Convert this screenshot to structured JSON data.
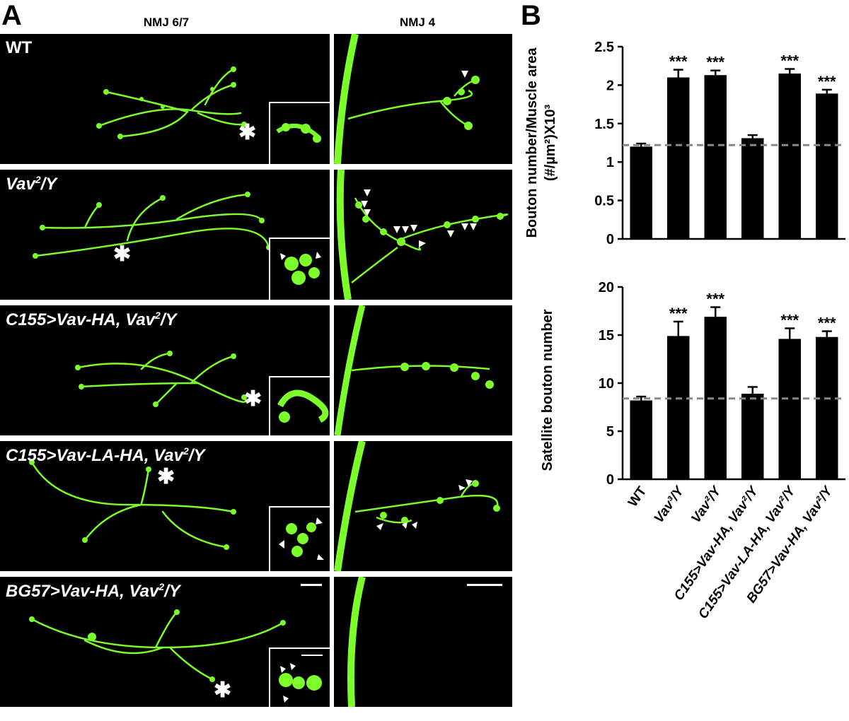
{
  "panel_a": {
    "letter": "A",
    "col_headers": [
      "NMJ 6/7",
      "NMJ 4"
    ],
    "rows": [
      {
        "label": "WT",
        "italic": false
      },
      {
        "label_pre": "Vav",
        "label_sup": "2",
        "label_post": "/Y",
        "italic": true
      },
      {
        "label_pre": "C155>Vav-HA, Vav",
        "label_sup": "2",
        "label_post": "/Y",
        "italic": true
      },
      {
        "label_pre": "C155>Vav-LA-HA, Vav",
        "label_sup": "2",
        "label_post": "/Y",
        "italic": true
      },
      {
        "label_pre": "BG57>Vav-HA, Vav",
        "label_sup": "2",
        "label_post": "/Y",
        "italic": true
      }
    ],
    "colors": {
      "signal": "#7CFC2A",
      "background": "#000000",
      "marker": "#ffffff"
    }
  },
  "panel_b": {
    "letter": "B"
  },
  "chart_data": [
    {
      "type": "bar",
      "ylabel_line1": "Bouton number/Muscle area",
      "ylabel_line2": "(#/µm²)X10³",
      "categories": [
        "WT",
        "Vav³/Y",
        "Vav²/Y",
        "C155>Vav-HA, Vav²/Y",
        "C155>Vav-LA-HA, Vav²/Y",
        "BG57>Vav-HA, Vav²/Y"
      ],
      "values": [
        1.2,
        2.1,
        2.13,
        1.31,
        2.15,
        1.89
      ],
      "errors": [
        0.04,
        0.1,
        0.06,
        0.04,
        0.06,
        0.05
      ],
      "significance": [
        "",
        "***",
        "***",
        "",
        "***",
        "***"
      ],
      "ylim": [
        0,
        2.5
      ],
      "yticks": [
        "0",
        "0.5",
        "1",
        "1.5",
        "2",
        "2.5"
      ],
      "reference_line": 1.22,
      "bar_color": "#000000",
      "reference_color": "#888888"
    },
    {
      "type": "bar",
      "ylabel_line1": "Satellite bouton number",
      "categories": [
        "WT",
        "Vav³/Y",
        "Vav²/Y",
        "C155>Vav-HA, Vav²/Y",
        "C155>Vav-LA-HA, Vav²/Y",
        "BG57>Vav-HA, Vav²/Y"
      ],
      "values": [
        8.2,
        14.9,
        16.9,
        8.9,
        14.6,
        14.8
      ],
      "errors": [
        0.4,
        1.5,
        1.0,
        0.7,
        1.1,
        0.6
      ],
      "significance": [
        "",
        "***",
        "***",
        "",
        "***",
        "***"
      ],
      "ylim": [
        0,
        20
      ],
      "yticks": [
        "0",
        "5",
        "10",
        "15",
        "20"
      ],
      "reference_line": 8.4,
      "bar_color": "#000000",
      "reference_color": "#888888"
    }
  ]
}
